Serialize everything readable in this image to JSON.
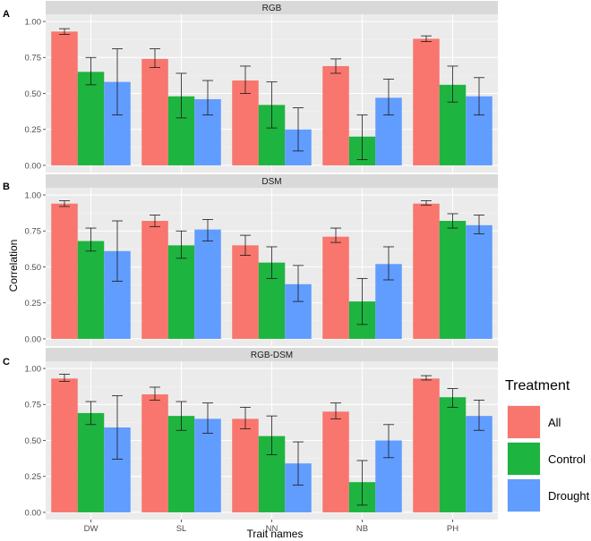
{
  "chart_data": {
    "type": "bar",
    "xlabel": "Trait names",
    "ylabel": "Correlation",
    "categories": [
      "DW",
      "SL",
      "NN",
      "NB",
      "PH"
    ],
    "ylim": [
      0,
      1
    ],
    "yticks": [
      "0.00",
      "0.25",
      "0.50",
      "0.75",
      "1.00"
    ],
    "legend": {
      "title": "Treatment",
      "position": "right",
      "entries": [
        {
          "name": "All",
          "color": "#F8766D"
        },
        {
          "name": "Control",
          "color": "#1EB440"
        },
        {
          "name": "Drought",
          "color": "#619CFF"
        }
      ]
    },
    "panels": [
      {
        "tag": "A",
        "title": "RGB",
        "series": [
          {
            "name": "All",
            "values": [
              0.93,
              0.74,
              0.59,
              0.69,
              0.88
            ],
            "err_low": [
              0.91,
              0.68,
              0.5,
              0.64,
              0.86
            ],
            "err_high": [
              0.95,
              0.81,
              0.69,
              0.74,
              0.9
            ]
          },
          {
            "name": "Control",
            "values": [
              0.65,
              0.48,
              0.42,
              0.2,
              0.56
            ],
            "err_low": [
              0.56,
              0.33,
              0.26,
              0.04,
              0.44
            ],
            "err_high": [
              0.75,
              0.64,
              0.58,
              0.35,
              0.69
            ]
          },
          {
            "name": "Drought",
            "values": [
              0.58,
              0.46,
              0.25,
              0.47,
              0.48
            ],
            "err_low": [
              0.35,
              0.35,
              0.1,
              0.35,
              0.35
            ],
            "err_high": [
              0.81,
              0.59,
              0.4,
              0.6,
              0.61
            ]
          }
        ]
      },
      {
        "tag": "B",
        "title": "DSM",
        "series": [
          {
            "name": "All",
            "values": [
              0.94,
              0.82,
              0.65,
              0.71,
              0.94
            ],
            "err_low": [
              0.92,
              0.78,
              0.58,
              0.67,
              0.93
            ],
            "err_high": [
              0.96,
              0.86,
              0.72,
              0.77,
              0.96
            ]
          },
          {
            "name": "Control",
            "values": [
              0.68,
              0.65,
              0.53,
              0.26,
              0.82
            ],
            "err_low": [
              0.61,
              0.56,
              0.42,
              0.1,
              0.77
            ],
            "err_high": [
              0.77,
              0.75,
              0.64,
              0.42,
              0.87
            ]
          },
          {
            "name": "Drought",
            "values": [
              0.61,
              0.76,
              0.38,
              0.52,
              0.79
            ],
            "err_low": [
              0.4,
              0.68,
              0.26,
              0.41,
              0.73
            ],
            "err_high": [
              0.82,
              0.83,
              0.51,
              0.64,
              0.86
            ]
          }
        ]
      },
      {
        "tag": "C",
        "title": "RGB-DSM",
        "series": [
          {
            "name": "All",
            "values": [
              0.93,
              0.82,
              0.65,
              0.7,
              0.93
            ],
            "err_low": [
              0.91,
              0.78,
              0.58,
              0.65,
              0.92
            ],
            "err_high": [
              0.96,
              0.87,
              0.73,
              0.76,
              0.95
            ]
          },
          {
            "name": "Control",
            "values": [
              0.69,
              0.67,
              0.53,
              0.21,
              0.8
            ],
            "err_low": [
              0.61,
              0.57,
              0.4,
              0.05,
              0.73
            ],
            "err_high": [
              0.77,
              0.77,
              0.67,
              0.36,
              0.86
            ]
          },
          {
            "name": "Drought",
            "values": [
              0.59,
              0.65,
              0.34,
              0.5,
              0.67
            ],
            "err_low": [
              0.37,
              0.55,
              0.19,
              0.38,
              0.57
            ],
            "err_high": [
              0.81,
              0.76,
              0.49,
              0.61,
              0.78
            ]
          }
        ]
      }
    ]
  }
}
